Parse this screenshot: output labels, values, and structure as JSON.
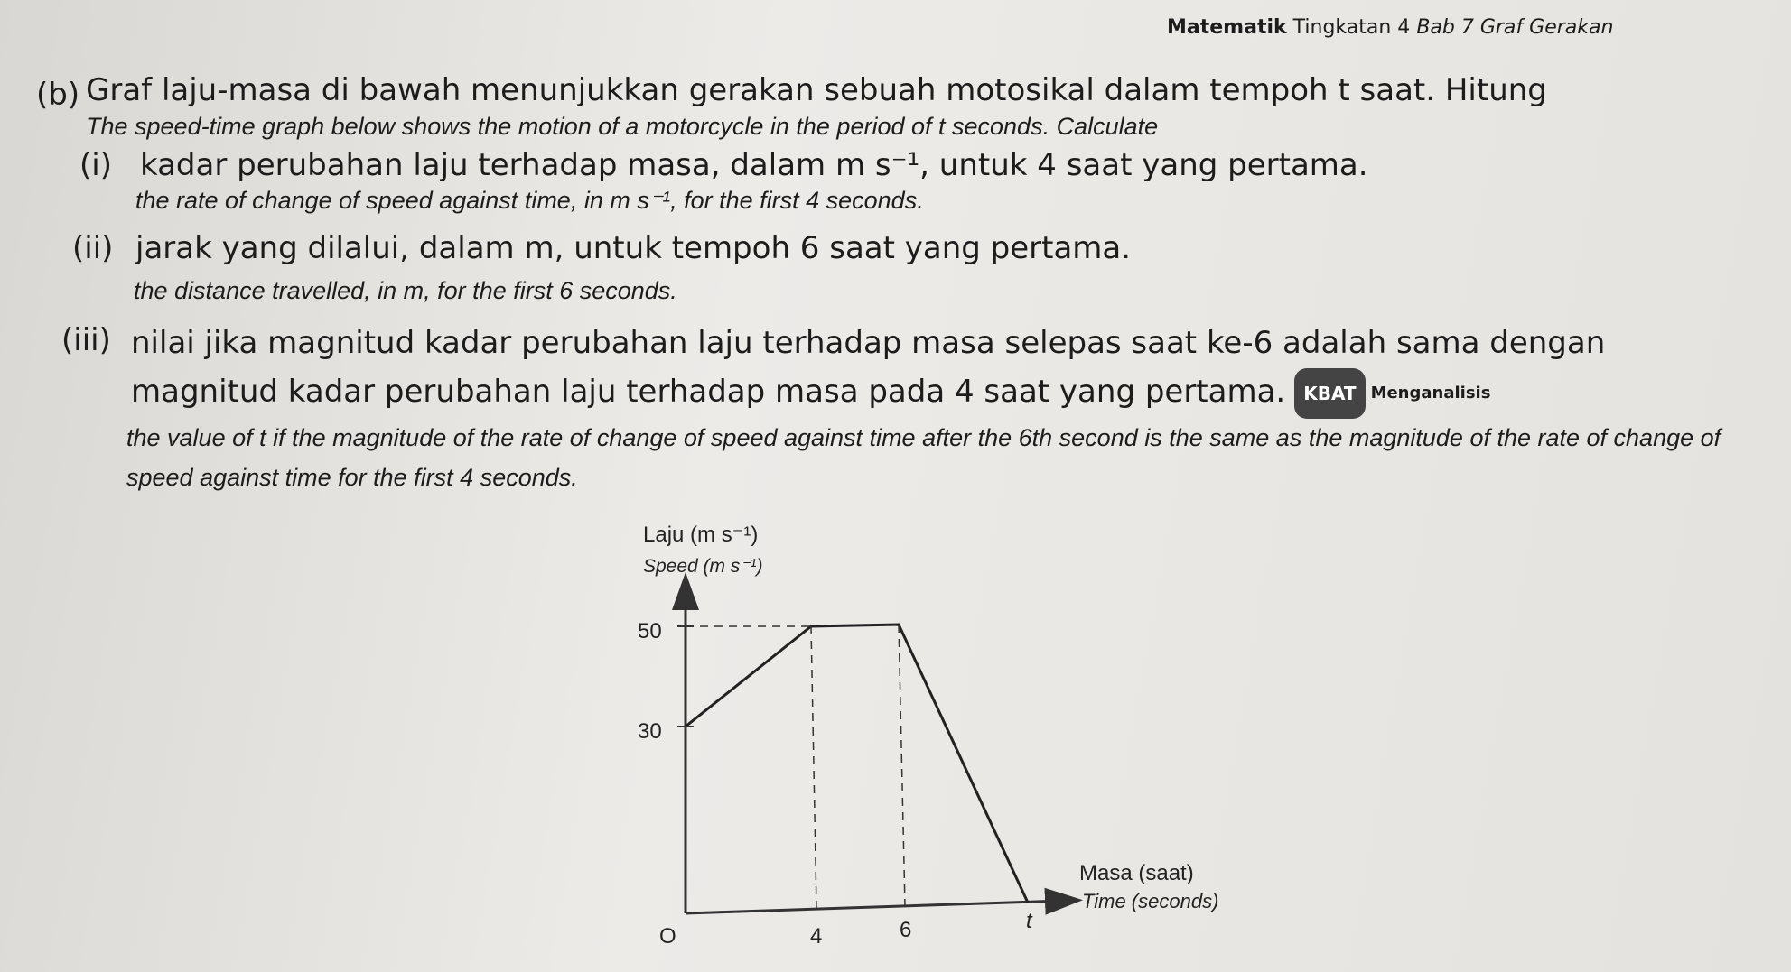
{
  "header": {
    "subject": "Matematik",
    "form": "Tingkatan 4",
    "chapter": "Bab 7 Graf Gerakan"
  },
  "question": {
    "label": "(b)",
    "text_ms": "Graf laju-masa di bawah menunjukkan gerakan sebuah motosikal dalam tempoh t saat. Hitung",
    "text_en": "The speed-time graph below shows the motion of a motorcycle in the period of t seconds. Calculate",
    "parts": [
      {
        "label": "(i)",
        "text_ms": "kadar perubahan laju terhadap masa, dalam m s⁻¹, untuk 4 saat yang pertama.",
        "text_en": "the rate of change of speed against time, in m s⁻¹, for the first 4 seconds."
      },
      {
        "label": "(ii)",
        "text_ms": "jarak yang dilalui, dalam m, untuk tempoh 6 saat yang pertama.",
        "text_en": "the distance travelled, in m, for the first 6 seconds."
      },
      {
        "label": "(iii)",
        "text_ms": "nilai  jika magnitud kadar perubahan laju terhadap masa selepas saat ke-6 adalah sama dengan magnitud kadar perubahan laju terhadap masa pada 4 saat yang pertama.",
        "badge": "KBAT",
        "skill": "Menganalisis",
        "text_en": "the value of t if the magnitude of the rate of change of speed against time after the 6th second is the same as the magnitude of the rate of change of speed against time for the first 4 seconds."
      }
    ]
  },
  "graph": {
    "y_label_ms": "Laju (m s⁻¹)",
    "y_label_en": "Speed (m s⁻¹)",
    "y_tick_labels": [
      "50",
      "30"
    ],
    "origin": "O",
    "x_tick_labels": [
      "4",
      "6",
      "t"
    ],
    "x_label_ms": "Masa (saat)",
    "x_label_en": "Time (seconds)"
  }
}
